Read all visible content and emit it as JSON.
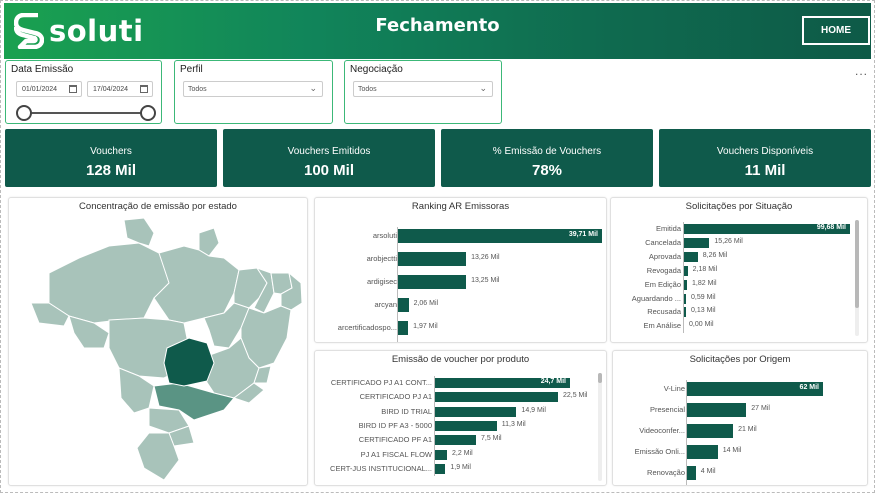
{
  "header": {
    "brand": "soluti",
    "title": "Fechamento",
    "home_label": "HOME"
  },
  "colors": {
    "accent": "#0f5a4b",
    "header_start": "#1aa150",
    "header_end": "#0e5a47",
    "filter_border": "#3cb878"
  },
  "filters": {
    "date": {
      "label": "Data Emissão",
      "start": "01/01/2024",
      "end": "17/04/2024",
      "range_start_fraction": 0.0,
      "range_end_fraction": 1.0
    },
    "perfil": {
      "label": "Perfil",
      "value": "Todos"
    },
    "negociacao": {
      "label": "Negociação",
      "value": "Todos"
    }
  },
  "more_label": "...",
  "kpis": [
    {
      "label": "Vouchers",
      "value": "128 Mil"
    },
    {
      "label": "Vouchers Emitidos",
      "value": "100 Mil"
    },
    {
      "label": "% Emissão de Vouchers",
      "value": "78%"
    },
    {
      "label": "Vouchers Disponíveis",
      "value": "11 Mil"
    }
  ],
  "map": {
    "title": "Concentração de emissão por estado",
    "highlight_color": "#0f5a4b",
    "secondary_color": "#5a9484",
    "base_color": "#a8c3ba"
  },
  "chart_data": [
    {
      "type": "bar",
      "title": "Ranking AR Emissoras",
      "categories": [
        "arsoluti",
        "arobjectti",
        "ardigisec",
        "arcyan",
        "arcertificadospo..."
      ],
      "values": [
        39.71,
        13.26,
        13.25,
        2.06,
        1.97
      ],
      "labels": [
        "39,71 Mil",
        "13,26 Mil",
        "13,25 Mil",
        "2,06 Mil",
        "1,97 Mil"
      ]
    },
    {
      "type": "bar",
      "title": "Solicitações por Situação",
      "categories": [
        "Emitida",
        "Cancelada",
        "Aprovada",
        "Revogada",
        "Em Edição",
        "Aguardando ...",
        "Recusada",
        "Em Análise"
      ],
      "values": [
        99.68,
        15.26,
        8.26,
        2.18,
        1.82,
        0.59,
        0.13,
        0.0
      ],
      "labels": [
        "99,68 Mil",
        "15,26 Mil",
        "8,26 Mil",
        "2,18 Mil",
        "1,82 Mil",
        "0,59 Mil",
        "0,13 Mil",
        "0,00 Mil"
      ]
    },
    {
      "type": "bar",
      "title": "Emissão de voucher por produto",
      "categories": [
        "CERTIFICADO PJ A1 CONT...",
        "CERTIFICADO PJ A1",
        "BIRD ID TRIAL",
        "BIRD ID PF A3 - 5000",
        "CERTIFICADO PF A1",
        "PJ A1 FISCAL FLOW",
        "CERT-JUS INSTITUCIONAL..."
      ],
      "values": [
        24.7,
        22.5,
        14.9,
        11.3,
        7.5,
        2.2,
        1.9
      ],
      "labels": [
        "24,7 Mil",
        "22,5 Mil",
        "14,9 Mil",
        "11,3 Mil",
        "7,5 Mil",
        "2,2 Mil",
        "1,9 Mil"
      ]
    },
    {
      "type": "bar",
      "title": "Solicitações por Origem",
      "categories": [
        "V-Line",
        "Presencial",
        "Videoconfer...",
        "Emissão Onli...",
        "Renovação"
      ],
      "values": [
        62,
        27,
        21,
        14,
        4
      ],
      "labels": [
        "62 Mil",
        "27 Mil",
        "21 Mil",
        "14 Mil",
        "4 Mil"
      ]
    }
  ]
}
